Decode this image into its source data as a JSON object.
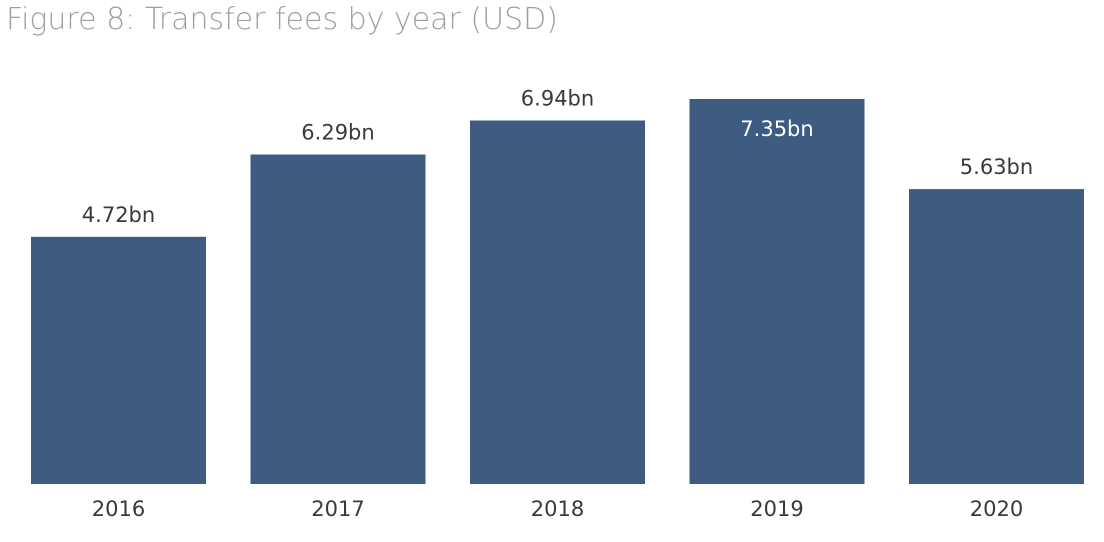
{
  "chart_data": {
    "type": "bar",
    "title": "Figure 8: Transfer fees by year (USD)",
    "categories": [
      "2016",
      "2017",
      "2018",
      "2019",
      "2020"
    ],
    "values": [
      4.72,
      6.29,
      6.94,
      7.35,
      5.63
    ],
    "data_labels": [
      "4.72bn",
      "6.29bn",
      "6.94bn",
      "7.35bn",
      "5.63bn"
    ],
    "label_inside": [
      false,
      false,
      false,
      true,
      false
    ],
    "ylim": [
      0,
      7.35
    ],
    "grid": false,
    "legend": "none",
    "bar_color": "#3e5c82",
    "label_color": "#3a3a3a"
  }
}
